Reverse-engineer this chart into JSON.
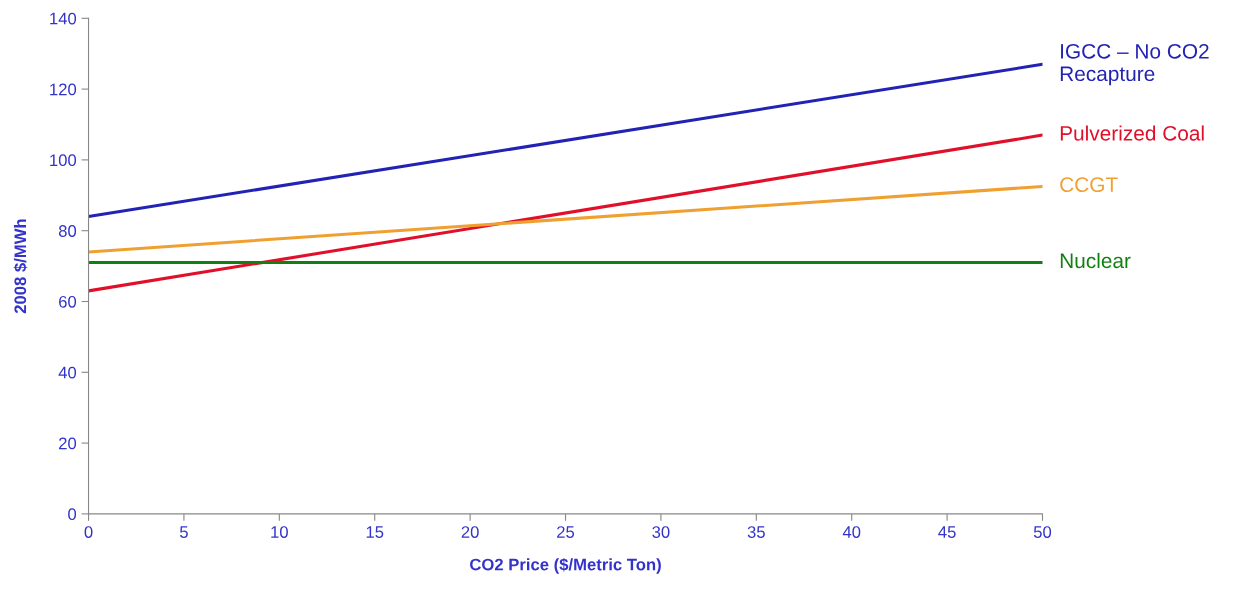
{
  "chart_data": {
    "type": "line",
    "xlabel": "CO2 Price ($/Metric Ton)",
    "ylabel": "2008 $/MWh",
    "x": [
      0,
      50
    ],
    "series": [
      {
        "name": "IGCC – No CO2\nRecapture",
        "color": "#2222b4",
        "values": [
          84,
          127
        ]
      },
      {
        "name": "Pulverized Coal",
        "color": "#e0102a",
        "values": [
          63,
          107
        ]
      },
      {
        "name": "CCGT",
        "color": "#f0a030",
        "values": [
          74,
          92.5
        ]
      },
      {
        "name": "Nuclear",
        "color": "#108010",
        "values": [
          71,
          71
        ]
      }
    ],
    "xlim": [
      0,
      50
    ],
    "xticks": [
      0,
      5,
      10,
      15,
      20,
      25,
      30,
      35,
      40,
      45,
      50
    ],
    "ylim": [
      0,
      140
    ],
    "yticks": [
      0,
      20,
      40,
      60,
      80,
      100,
      120,
      140
    ],
    "grid": false,
    "legend": false,
    "marker": "none",
    "line_style": "solid"
  }
}
